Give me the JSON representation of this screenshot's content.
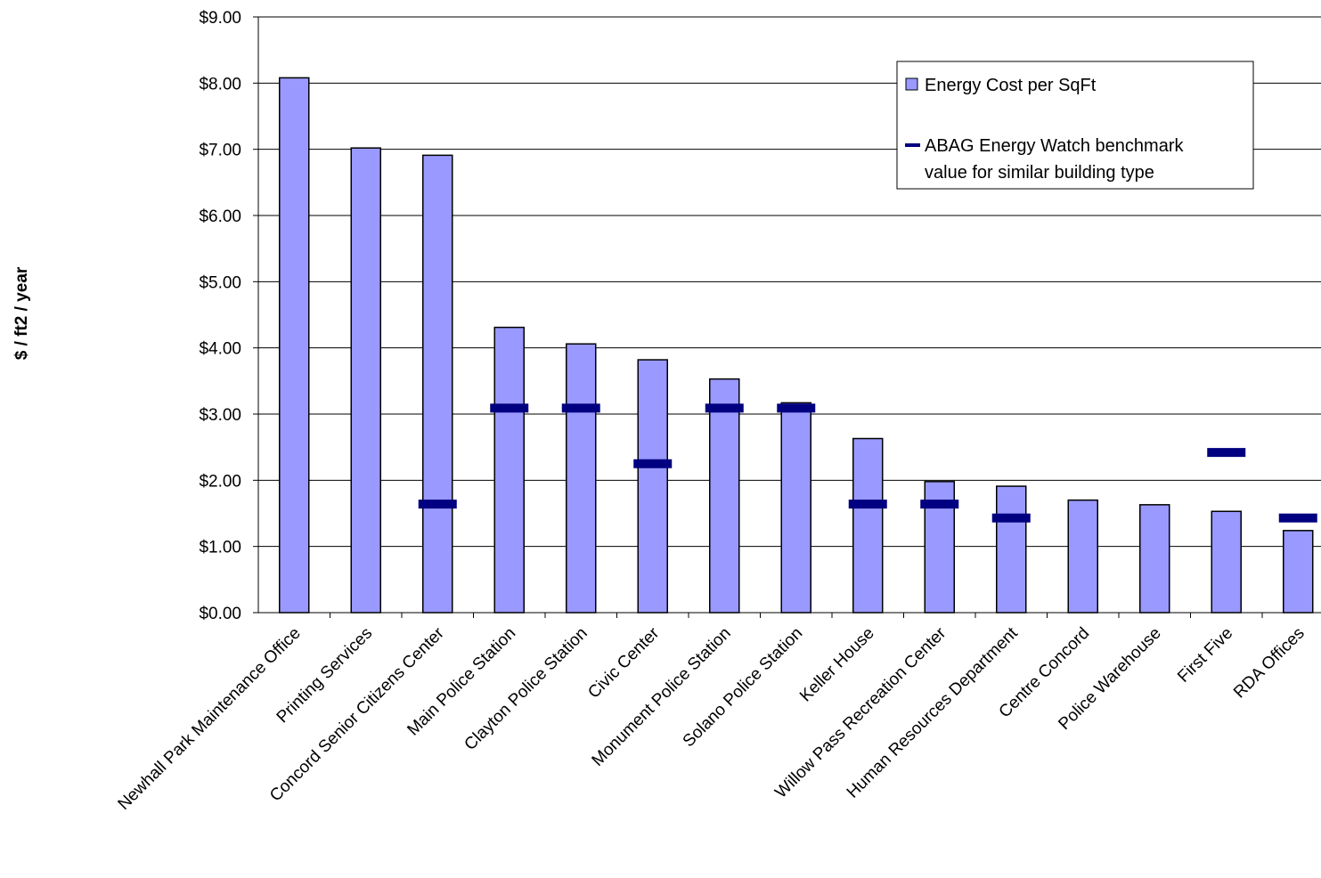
{
  "chart_data": {
    "type": "bar",
    "title": "",
    "xlabel": "",
    "ylabel": "$ / ft2 / year",
    "ylim": [
      0,
      9
    ],
    "yticks": [
      "$0.00",
      "$1.00",
      "$2.00",
      "$3.00",
      "$4.00",
      "$5.00",
      "$6.00",
      "$7.00",
      "$8.00",
      "$9.00"
    ],
    "grid": true,
    "legend_position": "top-right",
    "categories": [
      "Newhall Park Maintenance Office",
      "Printing Services",
      "Concord Senior Citizens Center",
      "Main Police Station",
      "Clayton Police Station",
      "Civic Center",
      "Monument Police Station",
      "Solano Police Station",
      "Keller House",
      "Willow Pass Recreation Center",
      "Human Resources Department",
      "Centre Concord",
      "Police Warehouse",
      "First Five",
      "RDA Offices"
    ],
    "series": [
      {
        "name": "Energy Cost per SqFt",
        "kind": "bar",
        "color": "#9999ff",
        "values": [
          8.08,
          7.02,
          6.91,
          4.31,
          4.06,
          3.82,
          3.53,
          3.17,
          2.63,
          1.98,
          1.91,
          1.7,
          1.63,
          1.53,
          1.24
        ]
      },
      {
        "name": "ABAG Energy Watch benchmark value for similar building type",
        "kind": "marker",
        "color": "#000080",
        "values": [
          null,
          null,
          1.64,
          3.09,
          3.09,
          2.25,
          3.09,
          3.09,
          1.64,
          1.64,
          1.43,
          null,
          null,
          2.42,
          1.43
        ]
      }
    ]
  },
  "legend": {
    "bar_label": "Energy Cost per SqFt",
    "marker_label_line1": "ABAG Energy Watch benchmark",
    "marker_label_line2": "value for similar building type"
  }
}
